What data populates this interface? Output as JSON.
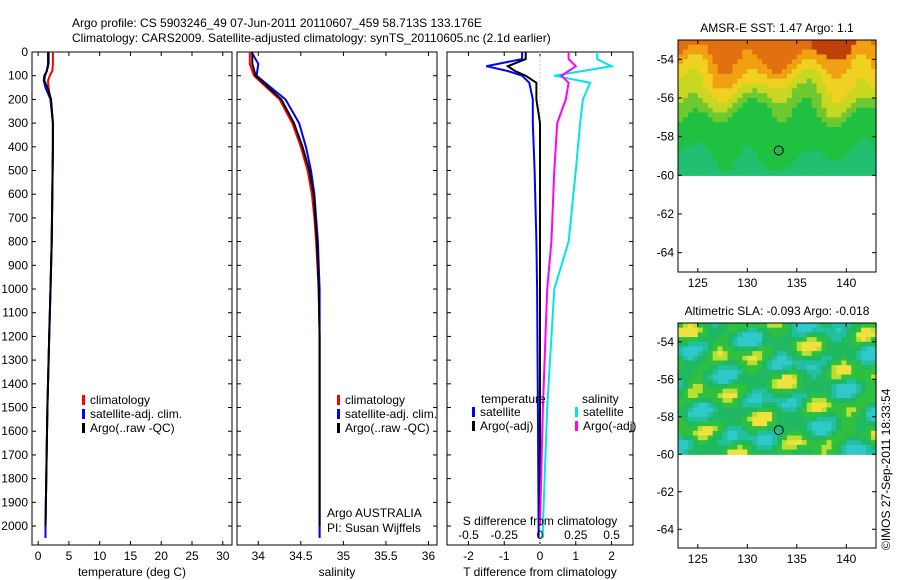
{
  "header": {
    "line1": "Argo profile: CS 5903246_49 07-Jun-2011 20110607_459 58.713S 133.176E",
    "line2": "Climatology: CARS2009. Satellite-adjusted climatology: synTS_20110605.nc (2.1d earlier)"
  },
  "colors": {
    "climatology": "#ff0000",
    "satellite": "#0000ff",
    "argo": "#000000",
    "sal_satellite": "#00e5e5",
    "sal_argo": "#ff00ff"
  },
  "chart_data": [
    {
      "type": "line",
      "name": "temperature",
      "xlabel": "temperature (deg C)",
      "xlim": [
        -1,
        31.5
      ],
      "xticks": [
        "0",
        "5",
        "10",
        "15",
        "20",
        "25",
        "30"
      ],
      "xtick_values": [
        0,
        5,
        10,
        15,
        20,
        25,
        30
      ],
      "ylim": [
        0,
        2080
      ],
      "yticks": [
        "0",
        "100",
        "200",
        "300",
        "400",
        "500",
        "600",
        "700",
        "800",
        "900",
        "1000",
        "1100",
        "1200",
        "1300",
        "1400",
        "1500",
        "1600",
        "1700",
        "1800",
        "1900",
        "2000"
      ],
      "depth": [
        0,
        50,
        80,
        100,
        120,
        150,
        200,
        300,
        400,
        600,
        800,
        1000,
        1200,
        1500,
        2000,
        2050
      ],
      "series": [
        {
          "name": "climatology",
          "color": "#ff0000",
          "values": [
            2.4,
            2.4,
            2.3,
            1.9,
            1.6,
            1.7,
            2.0,
            2.4,
            2.4,
            2.3,
            2.2,
            2.0,
            1.8,
            1.5,
            1.2,
            1.2
          ]
        },
        {
          "name": "satellite-adj. clim.",
          "color": "#0000ff",
          "values": [
            1.6,
            1.6,
            1.4,
            1.0,
            0.9,
            1.2,
            2.0,
            2.4,
            2.4,
            2.3,
            2.2,
            2.0,
            1.8,
            1.5,
            1.2,
            1.2
          ]
        },
        {
          "name": "Argo(..raw -QC)",
          "color": "#000000",
          "values": [
            1.7,
            1.7,
            1.4,
            1.1,
            1.0,
            1.5,
            2.1,
            2.4,
            2.4,
            2.3,
            2.2,
            2.0,
            1.8,
            1.5,
            1.2,
            null
          ]
        }
      ],
      "legend": [
        "climatology",
        "satellite-adj. clim.",
        "Argo(..raw -QC)"
      ]
    },
    {
      "type": "line",
      "name": "salinity",
      "xlabel": "salinity",
      "xlim": [
        33.75,
        36.1
      ],
      "xticks": [
        "34",
        "34.5",
        "35",
        "35.5",
        "36"
      ],
      "xtick_values": [
        34,
        34.5,
        35,
        35.5,
        36
      ],
      "ylim": [
        0,
        2080
      ],
      "depth": [
        0,
        50,
        100,
        150,
        200,
        300,
        400,
        500,
        600,
        700,
        800,
        1000,
        1200,
        1500,
        2000,
        2050
      ],
      "series": [
        {
          "name": "climatology",
          "color": "#ff0000",
          "values": [
            33.9,
            33.9,
            33.95,
            34.1,
            34.25,
            34.4,
            34.5,
            34.58,
            34.63,
            34.66,
            34.68,
            34.71,
            34.72,
            34.72,
            34.72,
            34.72
          ]
        },
        {
          "name": "satellite-adj. clim.",
          "color": "#0000ff",
          "values": [
            33.92,
            34.0,
            33.98,
            34.15,
            34.32,
            34.48,
            34.56,
            34.62,
            34.66,
            34.68,
            34.7,
            34.72,
            34.72,
            34.72,
            34.72,
            34.72
          ]
        },
        {
          "name": "Argo(..raw -QC)",
          "color": "#000000",
          "values": [
            33.93,
            33.93,
            33.97,
            34.12,
            34.27,
            34.42,
            34.52,
            34.6,
            34.65,
            34.67,
            34.69,
            34.71,
            34.72,
            34.72,
            34.72,
            null
          ]
        }
      ],
      "legend": [
        "climatology",
        "satellite-adj. clim.",
        "Argo(..raw -QC)"
      ],
      "annotation": [
        "Argo AUSTRALIA",
        "PI: Susan Wijffels"
      ]
    },
    {
      "type": "line",
      "name": "difference from climatology",
      "xlabel": "T difference from climatology",
      "xlabel_top": "S difference from climatology",
      "xlim": [
        -2.6,
        2.6
      ],
      "xticks": [
        "-2",
        "-1",
        "0",
        "1",
        "2"
      ],
      "xtick_values": [
        -2,
        -1,
        0,
        1,
        2
      ],
      "s_ticks": [
        "-0.5",
        "-0.25",
        "0",
        "0.25",
        "0.5"
      ],
      "s_tick_values": [
        -0.5,
        -0.25,
        0,
        0.25,
        0.5
      ],
      "ylim": [
        0,
        2080
      ],
      "depth": [
        0,
        30,
        60,
        80,
        100,
        130,
        200,
        300,
        500,
        800,
        1000,
        1500,
        2000,
        2050
      ],
      "series": [
        {
          "name": "temperature satellite",
          "color": "#0000ff",
          "values": [
            -0.5,
            -0.5,
            -1.5,
            -0.9,
            -0.5,
            -0.3,
            -0.2,
            -0.2,
            -0.15,
            -0.1,
            -0.08,
            -0.06,
            -0.04,
            -0.04
          ]
        },
        {
          "name": "temperature Argo(-adj)",
          "color": "#000000",
          "values": [
            -0.4,
            -0.4,
            -0.9,
            -0.7,
            -0.4,
            -0.1,
            -0.1,
            0.0,
            0.0,
            0.0,
            0.0,
            0.0,
            0.0,
            null
          ]
        },
        {
          "name": "salinity satellite",
          "color": "#00e5e5",
          "values": [
            0.4,
            0.4,
            0.5,
            0.3,
            0.1,
            0.35,
            0.3,
            0.28,
            0.25,
            0.2,
            0.1,
            0.05,
            0.02,
            0.02
          ]
        },
        {
          "name": "salinity Argo(-adj)",
          "color": "#ff00ff",
          "values": [
            0.2,
            0.2,
            0.25,
            0.2,
            0.15,
            0.2,
            0.18,
            0.12,
            0.1,
            0.08,
            0.05,
            0.02,
            0.0,
            null
          ]
        }
      ],
      "legend_temperature": {
        "title": "temperature",
        "items": [
          "satellite",
          "Argo(-adj)"
        ]
      },
      "legend_salinity": {
        "title": "salinity",
        "items": [
          "satellite",
          "Argo(-adj)"
        ]
      }
    },
    {
      "type": "heatmap",
      "name": "sst-map",
      "title": "AMSR-E SST: 1.47 Argo: 1.1",
      "xlim": [
        123,
        143
      ],
      "ylim": [
        -65,
        -53
      ],
      "xticks": [
        "125",
        "130",
        "135",
        "140"
      ],
      "xtick_values": [
        125,
        130,
        135,
        140
      ],
      "yticks": [
        "-54",
        "-56",
        "-58",
        "-60",
        "-62",
        "-64"
      ],
      "ytick_values": [
        -54,
        -56,
        -58,
        -60,
        -62,
        -64
      ],
      "marker": {
        "lon": 133.176,
        "lat": -58.713
      }
    },
    {
      "type": "heatmap",
      "name": "sla-map",
      "title": "Altimetric SLA: -0.093 Argo: -0.018",
      "xlim": [
        123,
        143
      ],
      "ylim": [
        -65,
        -53
      ],
      "xticks": [
        "125",
        "130",
        "135",
        "140"
      ],
      "xtick_values": [
        125,
        130,
        135,
        140
      ],
      "yticks": [
        "-54",
        "-56",
        "-58",
        "-60",
        "-62",
        "-64"
      ],
      "ytick_values": [
        -54,
        -56,
        -58,
        -60,
        -62,
        -64
      ],
      "marker": {
        "lon": 133.176,
        "lat": -58.713
      }
    }
  ],
  "footer": {
    "credit": "©IMOS 27-Sep-2011 18:33:54"
  }
}
